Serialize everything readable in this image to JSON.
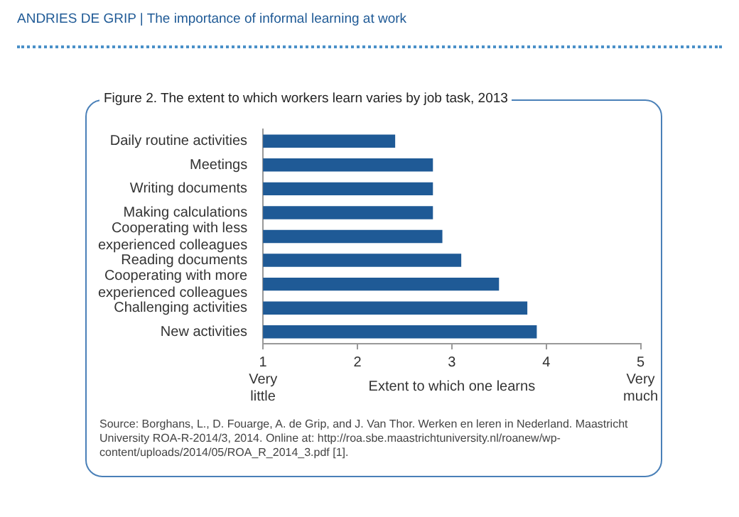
{
  "chart_data": {
    "type": "bar",
    "orientation": "horizontal",
    "title": "Figure 2. The extent to which workers learn varies by job task, 2013",
    "xlabel": "Extent to which one learns",
    "categories": [
      "Daily routine activities",
      "Meetings",
      "Writing documents",
      "Making calculations",
      "Cooperating with less experienced colleagues",
      "Reading documents",
      "Cooperating with more experienced colleagues",
      "Challenging activities",
      "New activities"
    ],
    "values": [
      2.4,
      2.8,
      2.8,
      2.8,
      2.9,
      3.1,
      3.5,
      3.8,
      3.9
    ],
    "color": "#1f5a96",
    "xlim": [
      1,
      5
    ],
    "xticks": [
      {
        "value": 1,
        "label": "1\nVery\nlittle"
      },
      2,
      3,
      4,
      {
        "value": 5,
        "label": "5\nVery\nmuch"
      }
    ],
    "annotations": [
      "ANDRIES DE GRIP | The importance of informal learning at work",
      "Source: Borghans, L., D. Fouarge, A. de Grip, and J. Van Thor. Werken en leren in Nederland. Maastricht University ROA-R-2014/3, 2014. Online at: http://roa.sbe.maastrichtuniversity.nl/roanew/wp-content/uploads/2014/05/ROA_R_2014_3.pdf [1]."
    ]
  }
}
